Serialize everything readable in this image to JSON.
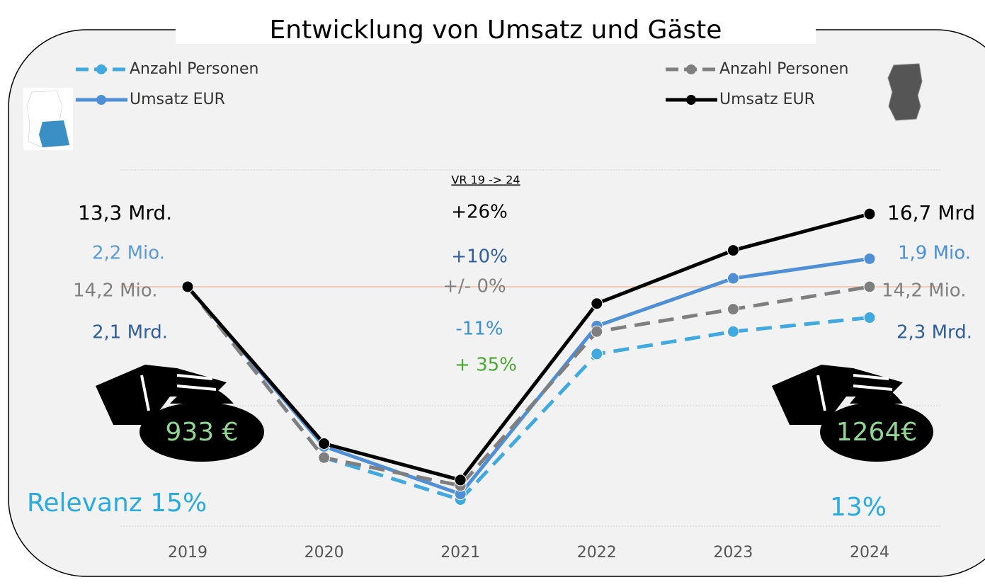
{
  "chart_data": {
    "type": "line",
    "title": "Entwicklung von Umsatz und Gäste",
    "categories": [
      "2019",
      "2020",
      "2021",
      "2022",
      "2023",
      "2024"
    ],
    "ylim": [
      10,
      145
    ],
    "series": [
      {
        "name": "Anzahl Personen",
        "color": "#3fa9e0",
        "dashed": true,
        "values": [
          100,
          39,
          24,
          76,
          84,
          89
        ]
      },
      {
        "name": "Umsatz EUR",
        "color": "#4f8fd6",
        "dashed": false,
        "values": [
          100,
          43,
          26,
          86,
          103,
          110
        ]
      },
      {
        "name": "Anzahl Personen",
        "color": "#7f7f7f",
        "dashed": true,
        "values": [
          100,
          39,
          29,
          84,
          92,
          100
        ]
      },
      {
        "name": "Umsatz EUR",
        "color": "#000000",
        "dashed": false,
        "values": [
          100,
          44,
          31,
          94,
          113,
          126
        ]
      }
    ],
    "annotations": [
      {
        "text": "VR 19 -> 24",
        "color": "#000000"
      },
      {
        "text": "+26%",
        "color": "#000000"
      },
      {
        "text": "+10%",
        "color": "#2e5e9e"
      },
      {
        "text": "+/- 0%",
        "color": "#808080"
      },
      {
        "text": "-11%",
        "color": "#3c8fd0"
      },
      {
        "text": "+ 35%",
        "color": "#4aa832"
      },
      {
        "text": "13,3 Mrd.",
        "color": "#000000"
      },
      {
        "text": "2,2 Mio.",
        "color": "#5b9bd5"
      },
      {
        "text": "14,2 Mio.",
        "color": "#808080"
      },
      {
        "text": "2,1 Mrd.",
        "color": "#2e5e9e"
      },
      {
        "text": "16,7 Mrd",
        "color": "#000000"
      },
      {
        "text": "1,9 Mio.",
        "color": "#4a90d9"
      },
      {
        "text": "14,2 Mio.",
        "color": "#808080"
      },
      {
        "text": "2,3 Mrd.",
        "color": "#2e5e9e"
      },
      {
        "text": "933 €",
        "color": "#8fd694"
      },
      {
        "text": "1264€",
        "color": "#8fd694"
      },
      {
        "text": "Relevanz  15%",
        "color": "#29abe2"
      },
      {
        "text": "13%",
        "color": "#29abe2"
      }
    ]
  }
}
